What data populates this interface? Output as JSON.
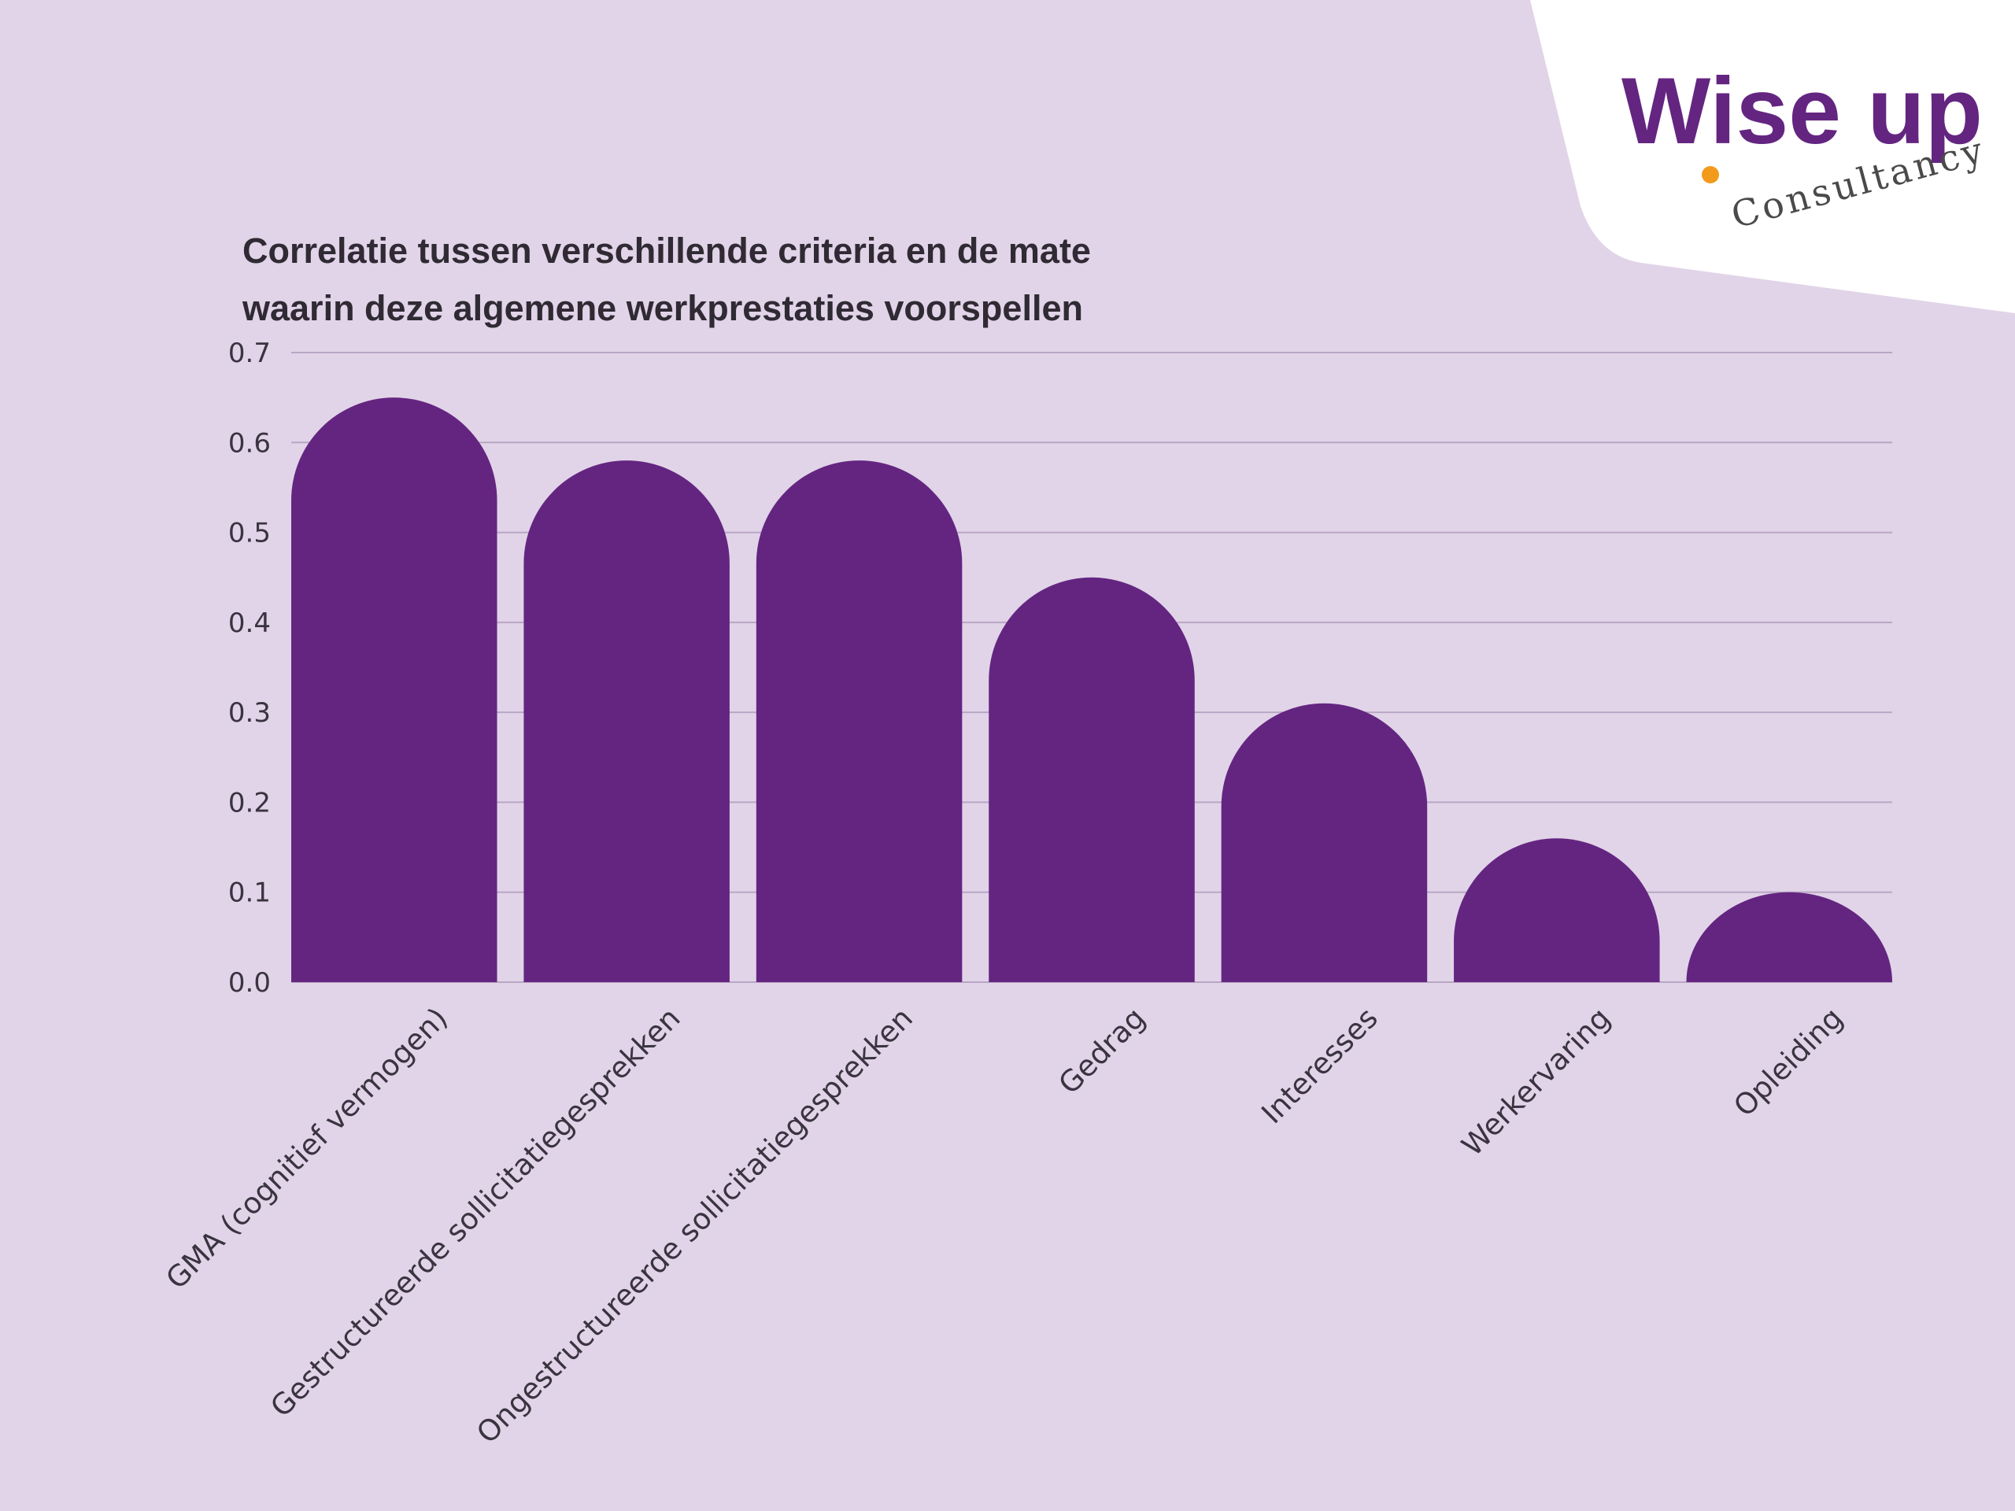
{
  "brand": {
    "logo_wise": "Wise up",
    "logo_sub": "Consultancy",
    "accent_color": "#642581",
    "dot_color": "#f29a1b"
  },
  "chart_data": {
    "type": "bar",
    "title_lines": [
      "Correlatie tussen verschillende criteria en de mate",
      "waarin deze algemene werkprestaties voorspellen"
    ],
    "categories": [
      "GMA (cognitief vermogen)",
      "Gestructureerde sollicitatiegesprekken",
      "Ongestructureerde sollicitatiegesprekken",
      "Gedrag",
      "Interesses",
      "Werkervaring",
      "Opleiding"
    ],
    "values": [
      0.65,
      0.58,
      0.58,
      0.45,
      0.31,
      0.16,
      0.1
    ],
    "yticks": [
      "0.0",
      "0.1",
      "0.2",
      "0.3",
      "0.4",
      "0.5",
      "0.6",
      "0.7"
    ],
    "ylim": [
      0,
      0.7
    ],
    "grid": true,
    "bar_color": "#642581",
    "background": "#e1d4e8"
  }
}
